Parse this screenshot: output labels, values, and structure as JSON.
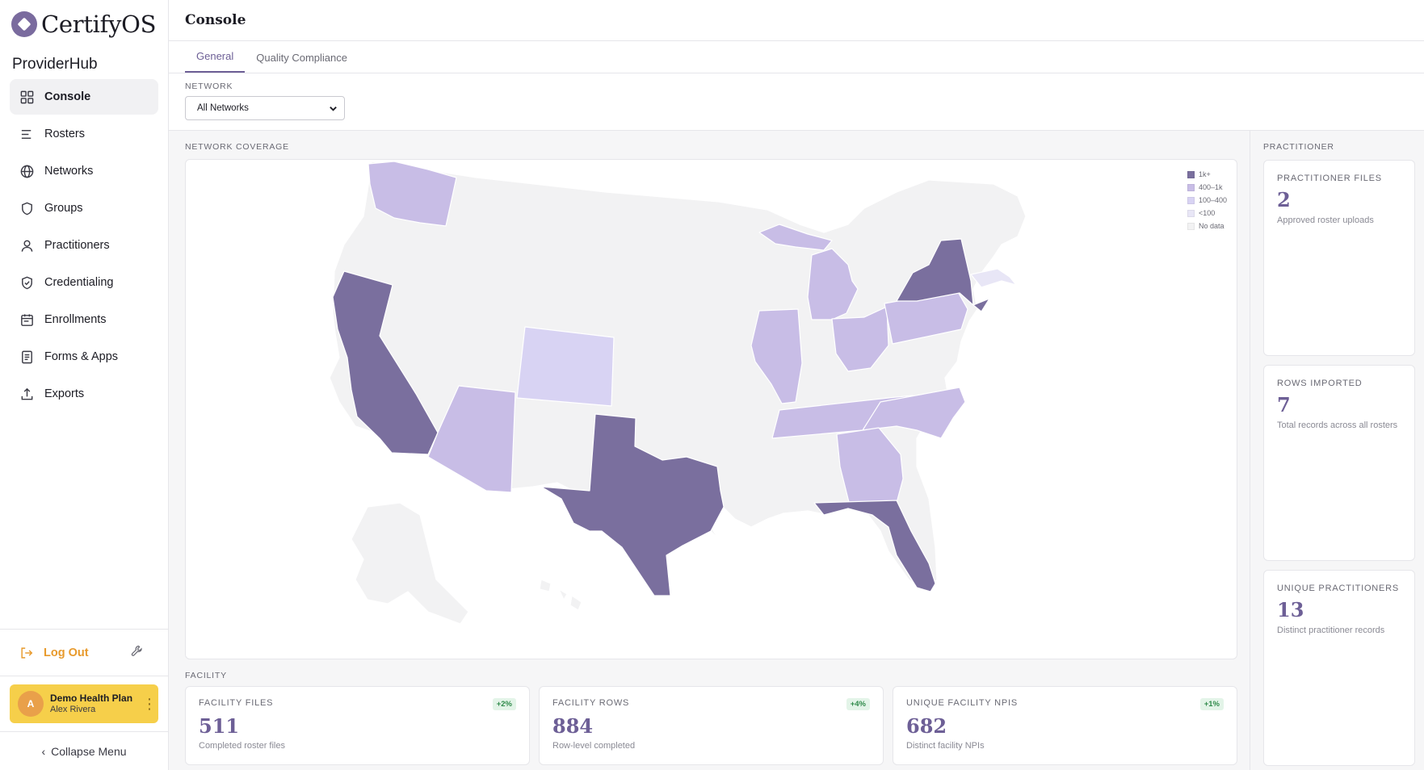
{
  "brand": {
    "name": "CertifyOS",
    "hub": "ProviderHub"
  },
  "sidebar": {
    "items": [
      {
        "label": "Console",
        "icon": "grid-icon",
        "active": true
      },
      {
        "label": "Rosters",
        "icon": "list-icon"
      },
      {
        "label": "Networks",
        "icon": "globe-icon"
      },
      {
        "label": "Groups",
        "icon": "shield-icon"
      },
      {
        "label": "Practitioners",
        "icon": "user-icon"
      },
      {
        "label": "Credentialing",
        "icon": "shield-check-icon"
      },
      {
        "label": "Enrollments",
        "icon": "calendar-icon"
      },
      {
        "label": "Forms & Apps",
        "icon": "form-icon"
      },
      {
        "label": "Exports",
        "icon": "upload-icon"
      }
    ],
    "logout_label": "Log Out",
    "account": {
      "initial": "A",
      "org": "Demo Health Plan",
      "user": "Alex Rivera"
    },
    "collapse_label": "Collapse Menu"
  },
  "header": {
    "title": "Console"
  },
  "tabs": [
    {
      "label": "General",
      "active": true
    },
    {
      "label": "Quality Compliance",
      "active": false
    }
  ],
  "filter": {
    "label": "NETWORK",
    "selected": "All Networks"
  },
  "coverage": {
    "label": "NETWORK COVERAGE",
    "legend": [
      {
        "label": "1k+",
        "color": "#7a6f9e"
      },
      {
        "label": "400–1k",
        "color": "#c8bde6"
      },
      {
        "label": "100–400",
        "color": "#d8d3f3"
      },
      {
        "label": "<100",
        "color": "#e8e6f6"
      },
      {
        "label": "No data",
        "color": "#f2f2f3"
      }
    ],
    "states_1k_plus": [
      "CA",
      "TX",
      "FL",
      "NY"
    ],
    "states_400_1k": [
      "WA",
      "AZ",
      "IL",
      "MI",
      "OH",
      "PA",
      "TN",
      "NC",
      "GA"
    ],
    "states_100_400": [
      "CO"
    ],
    "states_under_100": [
      "MA"
    ]
  },
  "facility": {
    "label": "FACILITY",
    "cards": [
      {
        "title": "FACILITY FILES",
        "value": "511",
        "sub": "Completed roster files",
        "badge": "+2%"
      },
      {
        "title": "FACILITY ROWS",
        "value": "884",
        "sub": "Row-level completed",
        "badge": "+4%"
      },
      {
        "title": "UNIQUE FACILITY NPIS",
        "value": "682",
        "sub": "Distinct facility NPIs",
        "badge": "+1%"
      }
    ]
  },
  "practitioner": {
    "label": "PRACTITIONER",
    "cards": [
      {
        "title": "PRACTITIONER FILES",
        "value": "2",
        "sub": "Approved roster uploads"
      },
      {
        "title": "ROWS IMPORTED",
        "value": "7",
        "sub": "Total records across all rosters"
      },
      {
        "title": "UNIQUE PRACTITIONERS",
        "value": "13",
        "sub": "Distinct practitioner records"
      }
    ]
  }
}
